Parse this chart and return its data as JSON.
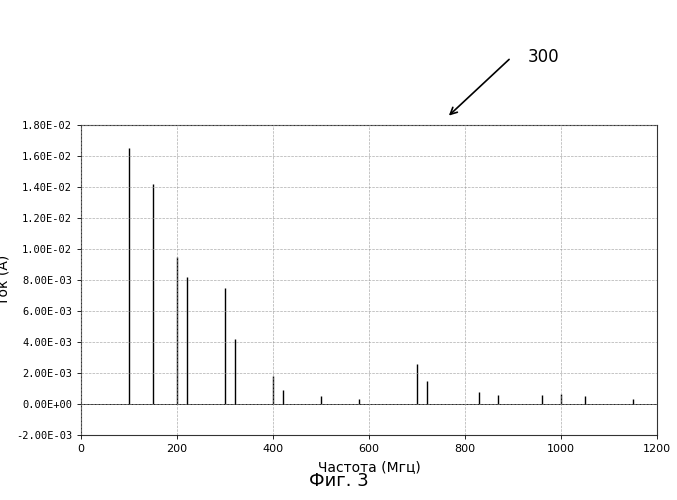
{
  "xlabel": "Частота (Мгц)",
  "ylabel": "Ток (A)",
  "xlim": [
    0,
    1200
  ],
  "ylim": [
    -0.002,
    0.018
  ],
  "xticks": [
    0,
    200,
    400,
    600,
    800,
    1000,
    1200
  ],
  "ytick_labels": [
    "-2.00E-03",
    "0.00E+00",
    "2.00E-03",
    "4.00E-03",
    "6.00E-03",
    "8.00E-03",
    "1.00E-02",
    "1.20E-02",
    "1.40E-02",
    "1.60E-02",
    "1.80E-02"
  ],
  "ytick_vals": [
    -0.002,
    0.0,
    0.002,
    0.004,
    0.006,
    0.008,
    0.01,
    0.012,
    0.014,
    0.016,
    0.018
  ],
  "spikes": [
    {
      "freq": 100,
      "amp": 0.0165
    },
    {
      "freq": 150,
      "amp": 0.0142
    },
    {
      "freq": 200,
      "amp": 0.0095
    },
    {
      "freq": 220,
      "amp": 0.0082
    },
    {
      "freq": 300,
      "amp": 0.0075
    },
    {
      "freq": 320,
      "amp": 0.0042
    },
    {
      "freq": 400,
      "amp": 0.0018
    },
    {
      "freq": 420,
      "amp": 0.0009
    },
    {
      "freq": 500,
      "amp": 0.0005
    },
    {
      "freq": 580,
      "amp": 0.00035
    },
    {
      "freq": 700,
      "amp": 0.0026
    },
    {
      "freq": 720,
      "amp": 0.0015
    },
    {
      "freq": 830,
      "amp": 0.0008
    },
    {
      "freq": 870,
      "amp": 0.0006
    },
    {
      "freq": 960,
      "amp": 0.00055
    },
    {
      "freq": 1000,
      "amp": 0.00065
    },
    {
      "freq": 1050,
      "amp": 0.0005
    },
    {
      "freq": 1150,
      "amp": 0.0003
    }
  ],
  "background_color": "#ffffff",
  "plot_bg_color": "#ffffff",
  "line_color": "#000000",
  "grid_color": "#999999",
  "figure_caption": "Фиг. 3",
  "annotation_label": "300",
  "annotation_fontsize": 12
}
